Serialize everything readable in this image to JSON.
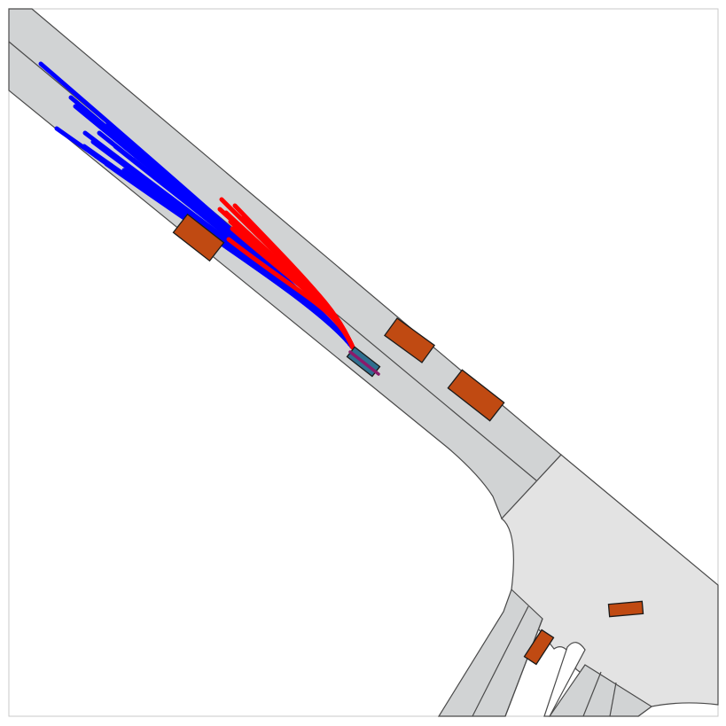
{
  "colors": {
    "background": "#ffffff",
    "road": "#d1d3d4",
    "junction": "#e3e3e3",
    "road_edge": "#4a4a4a",
    "other_vehicle": "#c04a12",
    "ego_vehicle": "#2f6f8f",
    "predicted_future": "#0000ff",
    "ground_truth_future": "#ff0000",
    "ego_heading": "#8b1a6b"
  },
  "scene": {
    "ego_vehicle": {
      "icon": "ego-car-icon"
    },
    "other_vehicles": [
      {
        "id": "vehicle-1",
        "icon": "car-icon"
      },
      {
        "id": "vehicle-2",
        "icon": "car-icon"
      },
      {
        "id": "vehicle-3",
        "icon": "car-icon"
      },
      {
        "id": "vehicle-4",
        "icon": "car-icon"
      },
      {
        "id": "vehicle-5",
        "icon": "car-icon"
      }
    ],
    "trajectory_groups": [
      {
        "id": "blue-trajectories",
        "color": "#0000ff"
      },
      {
        "id": "red-trajectories",
        "color": "#ff0000"
      }
    ]
  }
}
